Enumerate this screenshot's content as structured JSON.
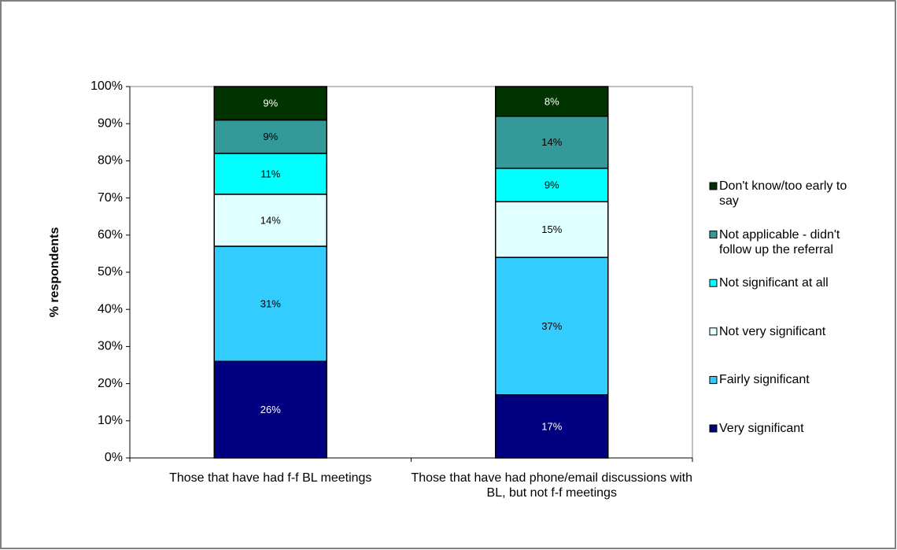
{
  "chart_data": {
    "type": "stacked_bar",
    "y_label": "% respondents",
    "categories": [
      "Those that have had f-f BL meetings",
      "Those that have had phone/email discussions with BL, but not f-f meetings"
    ],
    "series": [
      {
        "name": "Very significant",
        "color": "#000080",
        "label_color": "#ffffff",
        "values": [
          26,
          17
        ],
        "value_labels": [
          "26%",
          "17%"
        ]
      },
      {
        "name": "Fairly significant",
        "color": "#33ccff",
        "label_color": "#000000",
        "values": [
          31,
          37
        ],
        "value_labels": [
          "31%",
          "37%"
        ]
      },
      {
        "name": "Not very significant",
        "color": "#e0ffff",
        "label_color": "#000000",
        "values": [
          14,
          15
        ],
        "value_labels": [
          "14%",
          "15%"
        ]
      },
      {
        "name": "Not significant at all",
        "color": "#00ffff",
        "label_color": "#000000",
        "values": [
          11,
          9
        ],
        "value_labels": [
          "11%",
          "9%"
        ]
      },
      {
        "name": "Not applicable - didn't follow up the referral",
        "color": "#339999",
        "label_color": "#000000",
        "values": [
          9,
          14
        ],
        "value_labels": [
          "9%",
          "14%"
        ]
      },
      {
        "name": "Don't know/too early to say",
        "color": "#003300",
        "label_color": "#ffffff",
        "values": [
          9,
          8
        ],
        "value_labels": [
          "9%",
          "8%"
        ]
      }
    ],
    "ylim": [
      0,
      100
    ],
    "yticks": [
      {
        "value": 0,
        "label": "0%"
      },
      {
        "value": 10,
        "label": "10%"
      },
      {
        "value": 20,
        "label": "20%"
      },
      {
        "value": 30,
        "label": "30%"
      },
      {
        "value": 40,
        "label": "40%"
      },
      {
        "value": 50,
        "label": "50%"
      },
      {
        "value": 60,
        "label": "60%"
      },
      {
        "value": 70,
        "label": "70%"
      },
      {
        "value": 80,
        "label": "80%"
      },
      {
        "value": 90,
        "label": "90%"
      },
      {
        "value": 100,
        "label": "100%"
      }
    ],
    "grid": false,
    "legend": "right"
  }
}
